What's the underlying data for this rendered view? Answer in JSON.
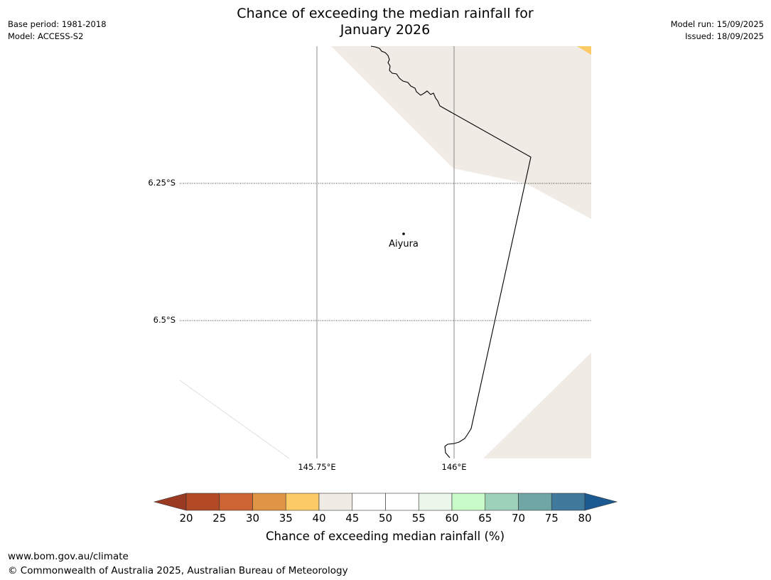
{
  "title_line1": "Chance of exceeding the median rainfall for",
  "title_line2": "January 2026",
  "meta": {
    "base_period": "Base period: 1981-2018",
    "model": "Model: ACCESS-S2",
    "model_run": "Model run: 15/09/2025",
    "issued": "Issued: 18/09/2025"
  },
  "map": {
    "lat_labels": [
      "6.25°S",
      "6.5°S"
    ],
    "lon_labels": [
      "145.75°E",
      "146°E"
    ],
    "place": "Aiyura",
    "colors": {
      "land_fill": "#f0ebe5",
      "accent_35_40": "#fdcb66",
      "border": "#000000",
      "graticule": "#888888"
    }
  },
  "colorbar": {
    "ticks": [
      "20",
      "25",
      "30",
      "35",
      "40",
      "45",
      "50",
      "55",
      "60",
      "65",
      "70",
      "75",
      "80"
    ],
    "colors": [
      "#9b3a23",
      "#b34a26",
      "#cc6533",
      "#e09445",
      "#fdcb66",
      "#f0ebe5",
      "#ffffff",
      "#ffffff",
      "#eaf7ea",
      "#c9fbc9",
      "#9dd1ba",
      "#70a6a5",
      "#3f7a9c",
      "#1b5a91"
    ],
    "label": "Chance of exceeding median rainfall (%)"
  },
  "footer": {
    "url": "www.bom.gov.au/climate",
    "copyright": "© Commonwealth of Australia 2025, Australian Bureau of Meteorology"
  }
}
